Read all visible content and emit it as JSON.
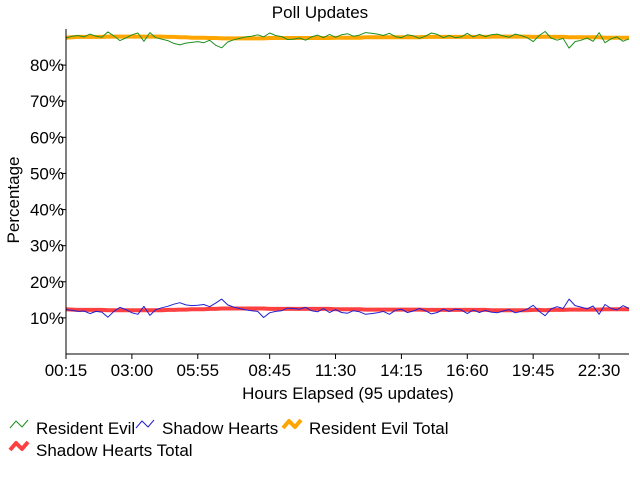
{
  "chart_data": {
    "type": "line",
    "title": "Poll Updates",
    "xlabel": "Hours Elapsed (95 updates)",
    "ylabel": "Percentage",
    "ylim": [
      0,
      90
    ],
    "y_ticks": [
      10,
      20,
      30,
      40,
      50,
      60,
      70,
      80
    ],
    "y_tick_labels": [
      "10%",
      "20%",
      "30%",
      "40%",
      "50%",
      "60%",
      "70%",
      "80%"
    ],
    "x_tick_labels": [
      "00:15",
      "03:00",
      "05:55",
      "08:45",
      "11:30",
      "14:15",
      "16:60",
      "19:45",
      "22:30"
    ],
    "x_tick_indices": [
      0,
      11,
      22,
      34,
      45,
      56,
      67,
      78,
      89
    ],
    "legend_position": "bottom-left",
    "grid": false,
    "series": [
      {
        "name": "Resident Evil",
        "color": "#1f8f1f",
        "style": "thin",
        "values": [
          87.5,
          88.0,
          88.2,
          87.8,
          88.6,
          88.0,
          87.7,
          89.2,
          88.1,
          86.8,
          87.5,
          88.4,
          88.9,
          86.6,
          89.0,
          87.6,
          87.2,
          86.8,
          86.0,
          85.6,
          86.1,
          86.3,
          86.5,
          86.2,
          86.9,
          85.5,
          84.8,
          86.4,
          87.0,
          87.4,
          87.8,
          88.0,
          88.4,
          87.8,
          88.9,
          88.2,
          87.9,
          87.1,
          87.2,
          87.5,
          86.9,
          87.8,
          88.3,
          87.6,
          88.5,
          87.7,
          88.4,
          88.7,
          88.0,
          88.3,
          89.0,
          88.8,
          88.6,
          88.2,
          88.8,
          87.9,
          87.6,
          88.4,
          88.1,
          87.4,
          88.0,
          88.9,
          88.5,
          87.6,
          88.2,
          87.6,
          87.8,
          88.8,
          87.8,
          88.5,
          87.9,
          88.4,
          88.6,
          88.1,
          87.7,
          88.6,
          88.2,
          87.6,
          86.5,
          88.2,
          89.3,
          87.5,
          86.9,
          87.4,
          84.7,
          86.5,
          86.9,
          87.5,
          86.6,
          89.0,
          86.2,
          87.3,
          87.8,
          86.6,
          87.3
        ]
      },
      {
        "name": "Shadow Hearts",
        "color": "#2020d0",
        "style": "thin",
        "values": [
          12.3,
          12.1,
          11.8,
          11.9,
          11.2,
          11.8,
          11.6,
          10.2,
          11.8,
          12.9,
          12.3,
          11.4,
          11.0,
          13.2,
          10.7,
          12.3,
          12.8,
          13.2,
          13.8,
          14.2,
          13.6,
          13.4,
          13.5,
          13.7,
          13.1,
          14.1,
          15.2,
          13.6,
          13.0,
          12.6,
          12.2,
          12.0,
          11.8,
          10.1,
          11.4,
          11.8,
          12.0,
          12.7,
          12.6,
          12.4,
          12.9,
          12.0,
          11.7,
          12.6,
          11.5,
          12.3,
          11.5,
          11.3,
          12.0,
          11.7,
          11.0,
          11.2,
          11.4,
          11.8,
          11.0,
          12.1,
          12.4,
          11.5,
          11.9,
          12.6,
          12.0,
          11.1,
          11.5,
          12.4,
          11.8,
          12.4,
          12.2,
          11.2,
          12.2,
          11.5,
          12.1,
          11.6,
          11.4,
          11.9,
          12.3,
          11.4,
          11.8,
          12.4,
          13.5,
          11.8,
          10.6,
          12.5,
          13.1,
          12.6,
          15.2,
          13.4,
          13.0,
          12.5,
          13.3,
          11.0,
          13.7,
          12.6,
          12.2,
          13.4,
          12.6
        ]
      },
      {
        "name": "Resident Evil Total",
        "color": "#ffa500",
        "style": "thick",
        "values": [
          87.6,
          87.7,
          87.8,
          87.8,
          87.8,
          87.8,
          87.8,
          87.9,
          87.9,
          87.9,
          87.9,
          87.9,
          87.9,
          87.9,
          87.9,
          87.9,
          87.9,
          87.8,
          87.8,
          87.7,
          87.7,
          87.6,
          87.6,
          87.6,
          87.5,
          87.5,
          87.4,
          87.4,
          87.4,
          87.4,
          87.4,
          87.4,
          87.4,
          87.4,
          87.5,
          87.5,
          87.5,
          87.5,
          87.5,
          87.5,
          87.5,
          87.5,
          87.5,
          87.5,
          87.5,
          87.6,
          87.6,
          87.6,
          87.6,
          87.6,
          87.7,
          87.7,
          87.7,
          87.7,
          87.7,
          87.7,
          87.7,
          87.7,
          87.7,
          87.7,
          87.8,
          87.8,
          87.8,
          87.8,
          87.8,
          87.8,
          87.8,
          87.8,
          87.8,
          87.8,
          87.8,
          87.9,
          87.9,
          87.9,
          87.9,
          87.9,
          87.9,
          87.9,
          87.8,
          87.8,
          87.9,
          87.8,
          87.8,
          87.8,
          87.7,
          87.7,
          87.7,
          87.7,
          87.7,
          87.7,
          87.6,
          87.6,
          87.6,
          87.6,
          87.6
        ]
      },
      {
        "name": "Shadow Hearts Total",
        "color": "#ff4040",
        "style": "thick",
        "values": [
          12.4,
          12.3,
          12.2,
          12.2,
          12.2,
          12.2,
          12.2,
          12.1,
          12.1,
          12.1,
          12.1,
          12.1,
          12.1,
          12.1,
          12.1,
          12.1,
          12.1,
          12.2,
          12.2,
          12.3,
          12.3,
          12.4,
          12.4,
          12.4,
          12.5,
          12.5,
          12.6,
          12.6,
          12.6,
          12.6,
          12.6,
          12.6,
          12.6,
          12.6,
          12.5,
          12.5,
          12.5,
          12.5,
          12.5,
          12.5,
          12.5,
          12.5,
          12.5,
          12.5,
          12.5,
          12.4,
          12.4,
          12.4,
          12.4,
          12.4,
          12.3,
          12.3,
          12.3,
          12.3,
          12.3,
          12.3,
          12.3,
          12.3,
          12.3,
          12.3,
          12.2,
          12.2,
          12.2,
          12.2,
          12.2,
          12.2,
          12.2,
          12.2,
          12.2,
          12.2,
          12.2,
          12.1,
          12.1,
          12.1,
          12.1,
          12.1,
          12.1,
          12.1,
          12.2,
          12.2,
          12.1,
          12.2,
          12.2,
          12.2,
          12.3,
          12.3,
          12.3,
          12.3,
          12.3,
          12.3,
          12.4,
          12.4,
          12.4,
          12.4,
          12.4
        ]
      }
    ]
  }
}
